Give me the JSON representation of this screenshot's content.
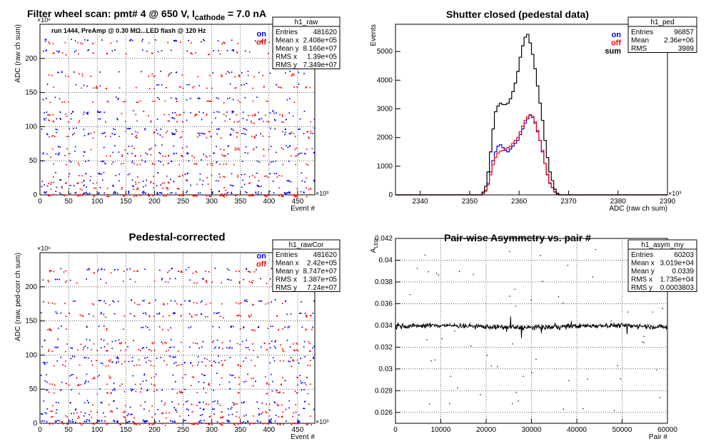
{
  "panels": [
    {
      "title": "Filter wheel scan: pmt#   4 @   650 V, I",
      "title_sub": "cathode",
      "title_tail": " = 7.0 nA",
      "ylabel": "ADC (raw ch sum)",
      "xlabel": "Event #",
      "yexp": "×10⁶",
      "xexp": "×10³",
      "note": "run 1444, PreAmp @ 0.30 MΩ...LED flash @  120 Hz",
      "legend": [
        "on",
        "off"
      ],
      "stats": {
        "name": "h1_raw",
        "rows": [
          [
            "Entries",
            "481620"
          ],
          [
            "Mean x",
            "2.408e+05"
          ],
          [
            "Mean y",
            "8.166e+07"
          ],
          [
            "RMS x",
            "1.39e+05"
          ],
          [
            "RMS y",
            "7.349e+07"
          ]
        ]
      }
    },
    {
      "title": "Shutter closed (pedestal data)",
      "ylabel": "Events",
      "xlabel": "ADC (raw ch sum)",
      "xexp": "×10³",
      "legend": [
        "on",
        "off",
        "sum"
      ],
      "stats": {
        "name": "h1_ped",
        "rows": [
          [
            "Entries",
            "96857"
          ],
          [
            "Mean",
            "2.36e+06"
          ],
          [
            "RMS",
            "3989"
          ]
        ]
      }
    },
    {
      "title": "Pedestal-corrected",
      "ylabel": "ADC (raw, ped-corr ch sum)",
      "xlabel": "Event #",
      "yexp": "×10⁶",
      "xexp": "×10³",
      "legend": [
        "on",
        "off"
      ],
      "stats": {
        "name": "h1_rawCor",
        "rows": [
          [
            "Entries",
            "481620"
          ],
          [
            "Mean x",
            "2.42e+05"
          ],
          [
            "Mean y",
            "8.747e+07"
          ],
          [
            "RMS x",
            "1.387e+05"
          ],
          [
            "RMS y",
            "7.24e+07"
          ]
        ]
      }
    },
    {
      "title": "Pair-wise Asymmetry vs. pair #",
      "ylabel": "A",
      "ylabel_sub": "LED",
      "xlabel": "Pair #",
      "stats": {
        "name": "h1_asym_my",
        "rows": [
          [
            "Entries",
            "60203"
          ],
          [
            "Mean x",
            "3.019e+04"
          ],
          [
            "Mean y",
            "0.0339"
          ],
          [
            "RMS x",
            "1.735e+04"
          ],
          [
            "RMS y",
            "0.0003803"
          ]
        ]
      }
    }
  ],
  "colors": {
    "on": "#0000ff",
    "off": "#ff0000",
    "sum": "#000000"
  },
  "chart_data": [
    {
      "type": "scatter",
      "xlim": [
        0,
        480
      ],
      "ylim": [
        0,
        250
      ],
      "xticks": [
        0,
        50,
        100,
        150,
        200,
        250,
        300,
        350,
        400,
        450
      ],
      "yticks": [
        0,
        50,
        100,
        150,
        200
      ],
      "band_levels": [
        225,
        210,
        178,
        160,
        140,
        120,
        110,
        95,
        88,
        70,
        60,
        48,
        30,
        20,
        12,
        2
      ],
      "series": [
        {
          "name": "on"
        },
        {
          "name": "off"
        }
      ]
    },
    {
      "type": "line",
      "xlim": [
        2335,
        2390
      ],
      "ylim": [
        0,
        5950
      ],
      "xticks": [
        2340,
        2350,
        2360,
        2370,
        2380,
        2390
      ],
      "yticks": [
        0,
        1000,
        2000,
        3000,
        4000,
        5000
      ],
      "bin_start": 2352,
      "bin_width": 0.5,
      "series": [
        {
          "name": "on",
          "values": [
            0,
            50,
            150,
            400,
            800,
            1200,
            1500,
            1700,
            1750,
            1650,
            1550,
            1500,
            1600,
            1700,
            1800,
            1900,
            2100,
            2300,
            2500,
            2650,
            2780,
            2700,
            2500,
            2200,
            1900,
            1500,
            1100,
            700,
            400,
            250,
            100,
            30,
            0
          ]
        },
        {
          "name": "off",
          "values": [
            0,
            50,
            130,
            350,
            700,
            1050,
            1300,
            1450,
            1520,
            1550,
            1600,
            1650,
            1700,
            1800,
            1900,
            2000,
            2200,
            2400,
            2600,
            2720,
            2800,
            2750,
            2550,
            2250,
            1900,
            1550,
            1100,
            720,
            420,
            260,
            110,
            30,
            0
          ]
        },
        {
          "name": "sum",
          "values": [
            0,
            100,
            300,
            800,
            1500,
            2300,
            2900,
            3100,
            3200,
            3150,
            3150,
            3200,
            3350,
            3600,
            3900,
            4300,
            4800,
            5200,
            5500,
            5600,
            5300,
            4900,
            4400,
            3800,
            3200,
            2600,
            1900,
            1300,
            800,
            500,
            200,
            60,
            0
          ]
        }
      ]
    },
    {
      "type": "scatter",
      "xlim": [
        0,
        480
      ],
      "ylim": [
        0,
        250
      ],
      "xticks": [
        0,
        50,
        100,
        150,
        200,
        250,
        300,
        350,
        400,
        450
      ],
      "yticks": [
        0,
        50,
        100,
        150,
        200
      ],
      "band_levels": [
        225,
        210,
        178,
        160,
        140,
        120,
        110,
        95,
        88,
        70,
        60,
        48,
        30,
        20,
        12,
        2
      ],
      "series": [
        {
          "name": "on"
        },
        {
          "name": "off"
        }
      ]
    },
    {
      "type": "scatter",
      "xlim": [
        0,
        60000
      ],
      "ylim": [
        0.025,
        0.042
      ],
      "xticks": [
        0,
        10000,
        20000,
        30000,
        40000,
        50000,
        60000
      ],
      "yticks": [
        0.026,
        0.028,
        0.03,
        0.032,
        0.034,
        0.036,
        0.038,
        0.04,
        0.042
      ],
      "series": [
        {
          "name": "asym",
          "mean": 0.0339,
          "spread": 0.0004
        }
      ]
    }
  ]
}
